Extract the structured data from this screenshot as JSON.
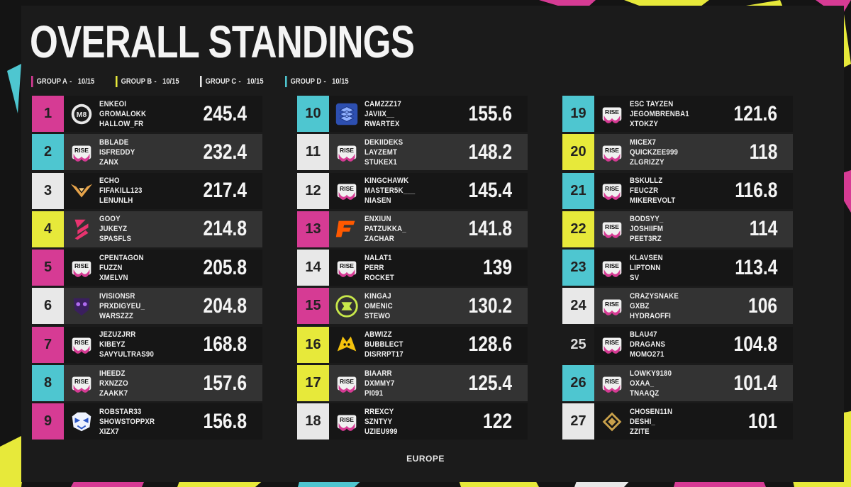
{
  "title": "OVERALL STANDINGS",
  "footer": "EUROPE",
  "colors": {
    "magenta": "#d63b94",
    "cyan": "#4ec6d0",
    "white": "#e8e8e8",
    "yellow": "#e7e93a"
  },
  "groups": [
    {
      "label": "GROUP A",
      "sep": "-",
      "date": "10/15",
      "color": "#d63b94"
    },
    {
      "label": "GROUP B",
      "sep": "-",
      "date": "10/15",
      "color": "#e7e93a"
    },
    {
      "label": "GROUP C",
      "sep": "-",
      "date": "10/15",
      "color": "#e8e8e8"
    },
    {
      "label": "GROUP D",
      "sep": "-",
      "date": "10/15",
      "color": "#4ec6d0"
    }
  ],
  "teams": [
    {
      "rank": "1",
      "players": [
        "ENKEOI",
        "GROMALOKK",
        "HALLOW_FR"
      ],
      "score": "245.4",
      "color": "#d63b94",
      "logo": "m8-logo-icon"
    },
    {
      "rank": "2",
      "players": [
        "BBLADE",
        "ISFREDDY",
        "ZANX"
      ],
      "score": "232.4",
      "color": "#4ec6d0",
      "logo": "rise-logo-icon"
    },
    {
      "rank": "3",
      "players": [
        "ECHO",
        "FIFAKILL123",
        "LENUNLH"
      ],
      "score": "217.4",
      "color": "#e8e8e8",
      "logo": "wings-logo-icon"
    },
    {
      "rank": "4",
      "players": [
        "GOOY",
        "JUKEYZ",
        "SPASFLS"
      ],
      "score": "214.8",
      "color": "#e7e93a",
      "logo": "stripes-logo-icon"
    },
    {
      "rank": "5",
      "players": [
        "CPENTAGON",
        "FUZZN",
        "XMELVN"
      ],
      "score": "205.8",
      "color": "#d63b94",
      "logo": "rise-logo-icon"
    },
    {
      "rank": "6",
      "players": [
        "IVISIONSR",
        "PRXDIGYEU_",
        "WARSZZZ"
      ],
      "score": "204.8",
      "color": "#e8e8e8",
      "logo": "skull-logo-icon"
    },
    {
      "rank": "7",
      "players": [
        "JEZUZJRR",
        "KIBEYZ",
        "SAVYULTRAS90"
      ],
      "score": "168.8",
      "color": "#d63b94",
      "logo": "rise-logo-icon"
    },
    {
      "rank": "8",
      "players": [
        "IHEEDZ",
        "RXNZZO",
        "ZAAKK7"
      ],
      "score": "157.6",
      "color": "#4ec6d0",
      "logo": "rise-logo-icon"
    },
    {
      "rank": "9",
      "players": [
        "ROBSTAR33",
        "SHOWSTOPPXR",
        "XIZX7"
      ],
      "score": "156.8",
      "color": "#d63b94",
      "logo": "tiger-logo-icon"
    },
    {
      "rank": "10",
      "players": [
        "CAMZZZ17",
        "JAVIIX__",
        "RWARTEX"
      ],
      "score": "155.6",
      "color": "#4ec6d0",
      "logo": "stack-logo-icon"
    },
    {
      "rank": "11",
      "players": [
        "DEKIIDEKS",
        "LAYZEMT",
        "STUKEX1"
      ],
      "score": "148.2",
      "color": "#e8e8e8",
      "logo": "rise-logo-icon"
    },
    {
      "rank": "12",
      "players": [
        "KINGCHAWK",
        "MASTER5K___",
        "NIASEN"
      ],
      "score": "145.4",
      "color": "#e8e8e8",
      "logo": "rise-logo-icon"
    },
    {
      "rank": "13",
      "players": [
        "ENXIUN",
        "PATZUKKA_",
        "ZACHAR"
      ],
      "score": "141.8",
      "color": "#d63b94",
      "logo": "fnatic-logo-icon"
    },
    {
      "rank": "14",
      "players": [
        "NALAT1",
        "PERR",
        "ROCKET"
      ],
      "score": "139",
      "color": "#e8e8e8",
      "logo": "rise-logo-icon"
    },
    {
      "rank": "15",
      "players": [
        "KINGAJ",
        "OMENIC",
        "STEWO"
      ],
      "score": "130.2",
      "color": "#d63b94",
      "logo": "ninjas-logo-icon"
    },
    {
      "rank": "16",
      "players": [
        "ABWIZZ",
        "BUBBLECT",
        "DISRRPT17"
      ],
      "score": "128.6",
      "color": "#e7e93a",
      "logo": "wolf-logo-icon"
    },
    {
      "rank": "17",
      "players": [
        "BIAARR",
        "DXMMY7",
        "PI091"
      ],
      "score": "125.4",
      "color": "#e7e93a",
      "logo": "rise-logo-icon"
    },
    {
      "rank": "18",
      "players": [
        "RREXCY",
        "SZNTYY",
        "UZIEU999"
      ],
      "score": "122",
      "color": "#e8e8e8",
      "logo": "rise-logo-icon"
    },
    {
      "rank": "19",
      "players": [
        "ESC TAYZEN",
        "JEGOMBRENBA1",
        "XTOKZY"
      ],
      "score": "121.6",
      "color": "#4ec6d0",
      "logo": "rise-logo-icon"
    },
    {
      "rank": "20",
      "players": [
        "MICEX7",
        "QUICKZEE999",
        "ZLGRIZZY"
      ],
      "score": "118",
      "color": "#e7e93a",
      "logo": "rise-logo-icon"
    },
    {
      "rank": "21",
      "players": [
        "BSKULLZ",
        "FEUCZR",
        "MIKEREVOLT"
      ],
      "score": "116.8",
      "color": "#4ec6d0",
      "logo": "rise-logo-icon"
    },
    {
      "rank": "22",
      "players": [
        "BODSYY_",
        "JOSHIIFM",
        "PEET3RZ"
      ],
      "score": "114",
      "color": "#e7e93a",
      "logo": "rise-logo-icon"
    },
    {
      "rank": "23",
      "players": [
        "KLAVSEN",
        "LIPTONN",
        "SV"
      ],
      "score": "113.4",
      "color": "#4ec6d0",
      "logo": "rise-logo-icon"
    },
    {
      "rank": "24",
      "players": [
        "CRAZYSNAKE",
        "GXBZ",
        "HYDRAOFFI"
      ],
      "score": "106",
      "color": "#e8e8e8",
      "logo": "rise-logo-icon"
    },
    {
      "rank": "25",
      "players": [
        "BLAU47",
        "DRAGANS",
        "MOMO271"
      ],
      "score": "104.8",
      "color": "#1b1b1b",
      "logo": "rise-logo-icon"
    },
    {
      "rank": "26",
      "players": [
        "LOWKY9180",
        "OXAA_",
        "TNAAQZ"
      ],
      "score": "101.4",
      "color": "#4ec6d0",
      "logo": "rise-logo-icon"
    },
    {
      "rank": "27",
      "players": [
        "CHOSEN11N",
        "DESHI_",
        "ZZITE"
      ],
      "score": "101",
      "color": "#e8e8e8",
      "logo": "chevron-logo-icon"
    }
  ]
}
